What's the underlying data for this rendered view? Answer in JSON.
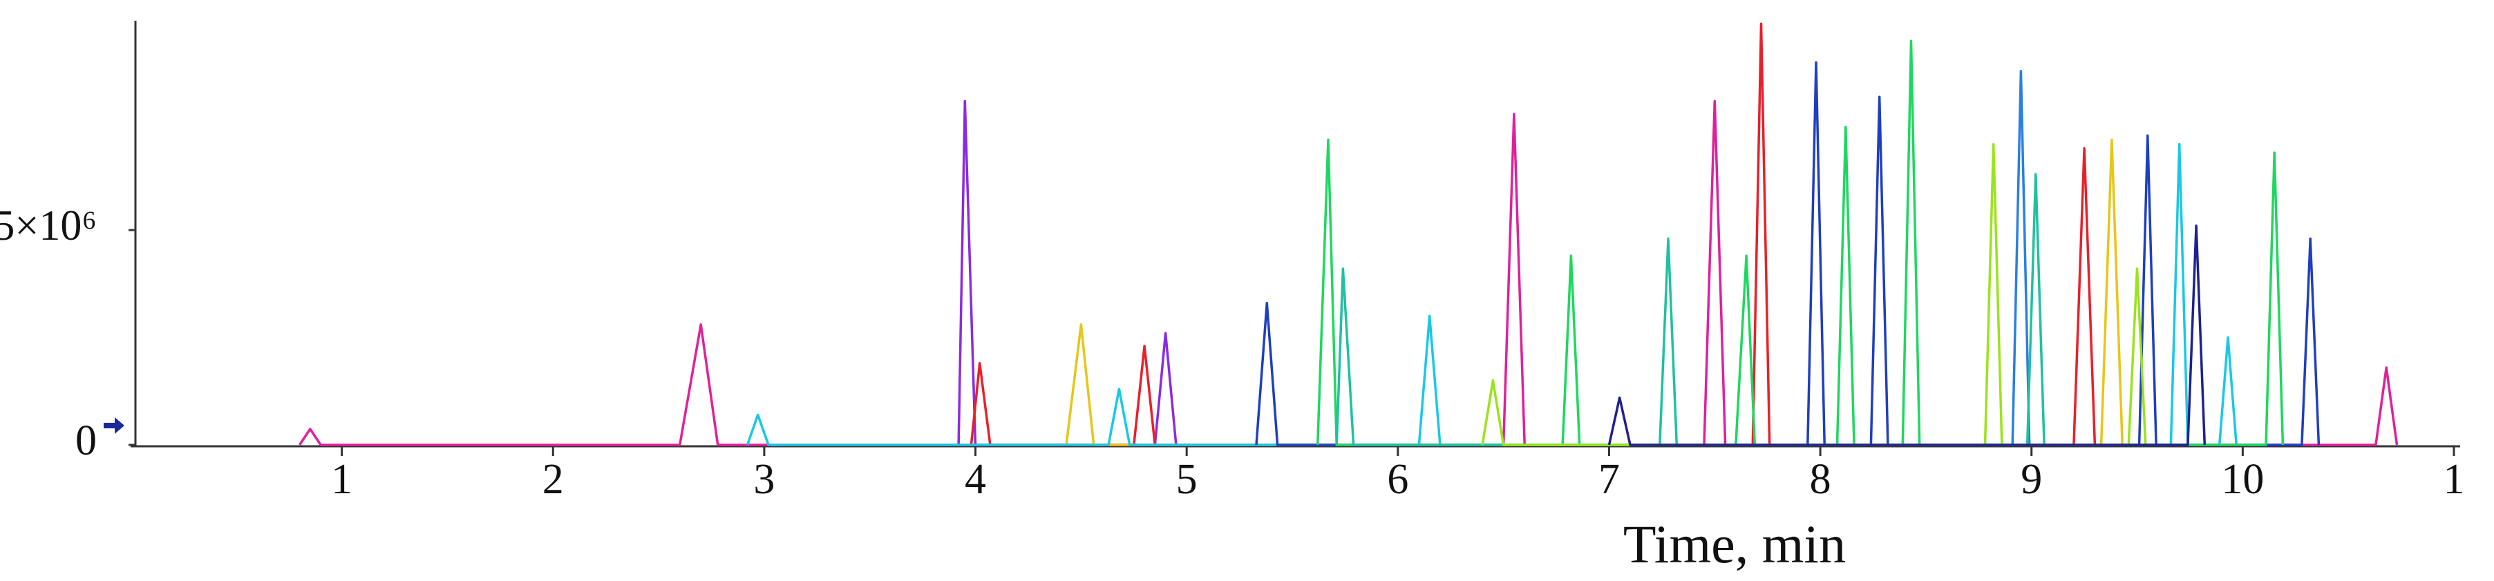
{
  "chart_data": {
    "type": "line",
    "xlabel": "Time, min",
    "xlim": [
      0,
      11
    ],
    "xticks": [
      1,
      2,
      3,
      4,
      5,
      6,
      7,
      8,
      9,
      10,
      {
        "value": 11,
        "label": "1"
      }
    ],
    "ylim": [
      0,
      10000000
    ],
    "yticks": [
      0,
      {
        "value": 5000000,
        "label": "5×10⁶"
      }
    ],
    "series": [
      {
        "color": "#e0209a",
        "x": [
          0.8,
          0.85,
          0.9,
          2.6,
          2.7,
          2.78,
          6.5,
          6.55,
          6.6,
          7.45,
          7.5,
          7.55,
          10.63,
          10.68,
          10.73
        ],
        "values": [
          0,
          370000,
          0,
          0,
          2800000,
          0,
          0,
          7700000,
          0,
          0,
          8000000,
          0,
          0,
          1800000,
          0
        ]
      },
      {
        "color": "#8a2be2",
        "x": [
          3.92,
          3.95,
          4.0,
          4.85,
          4.9,
          4.95
        ],
        "values": [
          0,
          8000000,
          0,
          0,
          2600000,
          0
        ]
      },
      {
        "color": "#e8202a",
        "x": [
          3.98,
          4.02,
          4.07,
          4.75,
          4.8,
          4.85,
          7.68,
          7.72,
          7.76,
          9.2,
          9.25,
          9.3
        ],
        "values": [
          0,
          1900000,
          0,
          0,
          2300000,
          0,
          0,
          9800000,
          0,
          0,
          6900000,
          0
        ]
      },
      {
        "color": "#e6c619",
        "x": [
          4.43,
          4.5,
          4.56,
          9.33,
          9.38,
          9.43
        ],
        "values": [
          0,
          2800000,
          0,
          0,
          7100000,
          0
        ]
      },
      {
        "color": "#19c8e6",
        "x": [
          2.92,
          2.97,
          3.02,
          4.63,
          4.68,
          4.73,
          6.1,
          6.15,
          6.2,
          9.66,
          9.7,
          9.74,
          9.89,
          9.93,
          9.97
        ],
        "values": [
          0,
          700000,
          0,
          0,
          1300000,
          0,
          0,
          3000000,
          0,
          0,
          7000000,
          0,
          0,
          2500000,
          0
        ]
      },
      {
        "color": "#1f3fbf",
        "x": [
          5.33,
          5.38,
          5.43,
          7.94,
          7.98,
          8.02,
          8.24,
          8.28,
          8.32,
          9.51,
          9.55,
          9.59,
          10.28,
          10.32,
          10.36
        ],
        "values": [
          0,
          3300000,
          0,
          0,
          8900000,
          0,
          0,
          8100000,
          0,
          0,
          7200000,
          0,
          0,
          4800000,
          0
        ]
      },
      {
        "color": "#2a7fe0",
        "x": [
          8.91,
          8.95,
          8.99
        ],
        "values": [
          0,
          8700000,
          0
        ]
      },
      {
        "color": "#1ed760",
        "x": [
          5.62,
          5.67,
          5.71,
          6.78,
          6.82,
          6.86,
          7.6,
          7.65,
          7.69,
          8.08,
          8.12,
          8.16,
          8.39,
          8.43,
          8.47,
          10.11,
          10.15,
          10.19
        ],
        "values": [
          0,
          7100000,
          0,
          0,
          4400000,
          0,
          0,
          4400000,
          0,
          0,
          7400000,
          0,
          0,
          9400000,
          0,
          0,
          6800000,
          0
        ]
      },
      {
        "color": "#20c0a0",
        "x": [
          5.71,
          5.74,
          5.79,
          7.24,
          7.28,
          7.32,
          8.98,
          9.02,
          9.06
        ],
        "values": [
          0,
          4100000,
          0,
          0,
          4800000,
          0,
          0,
          6300000,
          0
        ]
      },
      {
        "color": "#9be31c",
        "x": [
          6.4,
          6.45,
          6.5,
          8.78,
          8.82,
          8.86,
          9.46,
          9.5,
          9.54
        ],
        "values": [
          0,
          1500000,
          0,
          0,
          7000000,
          0,
          0,
          4100000,
          0
        ]
      },
      {
        "color": "#202090",
        "x": [
          7.0,
          7.05,
          7.1,
          9.74,
          9.78,
          9.82
        ],
        "values": [
          0,
          1100000,
          0,
          0,
          5100000,
          0
        ]
      }
    ]
  }
}
